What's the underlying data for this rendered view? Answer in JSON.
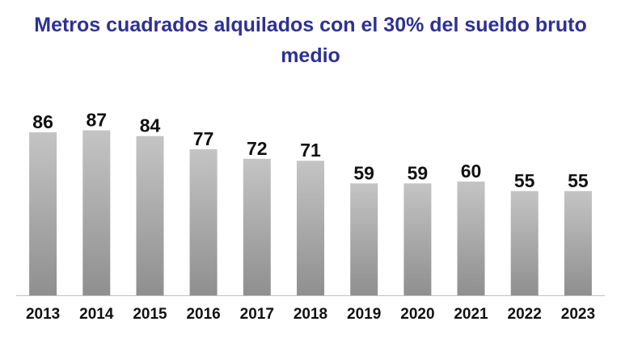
{
  "chart_data": {
    "type": "bar",
    "title": "Metros cuadrados alquilados con el 30% del sueldo bruto medio",
    "title_lines": [
      "Metros cuadrados alquilados con el 30% del sueldo bruto",
      "medio"
    ],
    "categories": [
      "2013",
      "2014",
      "2015",
      "2016",
      "2017",
      "2018",
      "2019",
      "2020",
      "2021",
      "2022",
      "2023"
    ],
    "values": [
      86,
      87,
      84,
      77,
      72,
      71,
      59,
      59,
      60,
      55,
      55
    ],
    "data_labels": [
      "86",
      "87",
      "84",
      "77",
      "72",
      "71",
      "59",
      "59",
      "60",
      "55",
      "55"
    ],
    "xlabel": "",
    "ylabel": "",
    "ylim": [
      0,
      90
    ],
    "grid": false,
    "legend": "none",
    "colors": {
      "title": "#2E3192",
      "bar_top": "#C4C4C4",
      "bar_bottom": "#8F8F8F",
      "axis": "#BFBFBF",
      "labels": "#111111"
    }
  }
}
